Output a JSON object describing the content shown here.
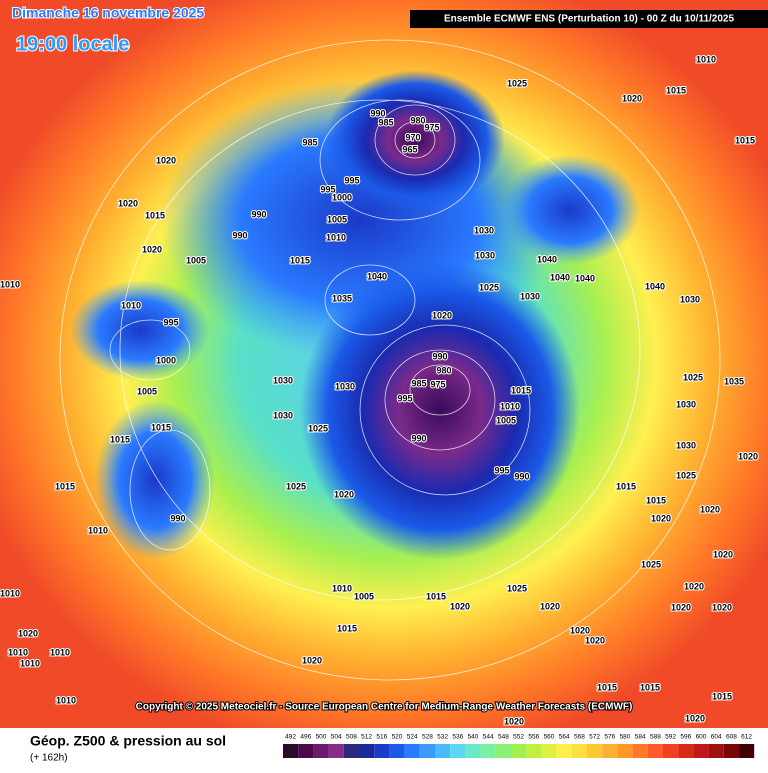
{
  "header": {
    "date": "Dimanche 16 novembre 2025",
    "time": "19:00 locale",
    "model": "Ensemble ECMWF ENS  (Perturbation 10)  - 00 Z du 10/11/2025"
  },
  "copyright": "Copyright © 2025 Meteociel.fr - Source European Centre for Medium-Range Weather Forecasts (ECMWF)",
  "footer": {
    "title": "Géop. Z500 & pression au sol",
    "lead": "(+ 162h)"
  },
  "colorbar": {
    "levels": [
      492,
      496,
      500,
      504,
      508,
      512,
      516,
      520,
      524,
      528,
      532,
      536,
      540,
      544,
      548,
      552,
      556,
      560,
      564,
      568,
      572,
      576,
      580,
      584,
      588,
      592,
      596,
      600,
      604,
      608,
      612
    ],
    "colors": [
      "#2a0a2a",
      "#4a0a4a",
      "#6a1a6a",
      "#8a2a8a",
      "#2a2a7a",
      "#1a2a9a",
      "#1a3ac8",
      "#1a5ae8",
      "#2a7aff",
      "#3a9aff",
      "#4abaff",
      "#5ad8f0",
      "#6ae8c8",
      "#7af0a0",
      "#8af078",
      "#a0f050",
      "#c0f040",
      "#e0f040",
      "#fff050",
      "#ffe040",
      "#ffc830",
      "#ffb030",
      "#ff9828",
      "#ff7828",
      "#ff5a28",
      "#f04020",
      "#d82818",
      "#c01818",
      "#a01010",
      "#780808",
      "#400000"
    ]
  },
  "isobar_labels": [
    1010,
    1025,
    1020,
    1015,
    1015,
    990,
    985,
    980,
    975,
    970,
    965,
    985,
    1020,
    995,
    995,
    1000,
    990,
    1005,
    990,
    1010,
    1020,
    1015,
    1020,
    1005,
    1015,
    1040,
    1035,
    1030,
    1030,
    1025,
    1030,
    1040,
    1040,
    1040,
    1040,
    1030,
    1020,
    995,
    1010,
    990,
    980,
    985,
    975,
    995,
    990,
    1030,
    1030,
    1030,
    1025,
    1015,
    1010,
    1005,
    995,
    990,
    1005,
    1000,
    1015,
    1015,
    1015,
    1025,
    1020,
    1010,
    990,
    1010,
    1010,
    1020,
    1010,
    1010,
    1010,
    1010,
    1015,
    1010,
    1005,
    1015,
    1020,
    1025,
    1020,
    1020,
    1020,
    1020,
    1020,
    1015,
    1015,
    1020,
    1025,
    1020,
    1020,
    1020,
    1020,
    1020,
    1020,
    1015,
    1015,
    1015,
    1020,
    1030,
    1025,
    1035,
    1030,
    1025
  ]
}
